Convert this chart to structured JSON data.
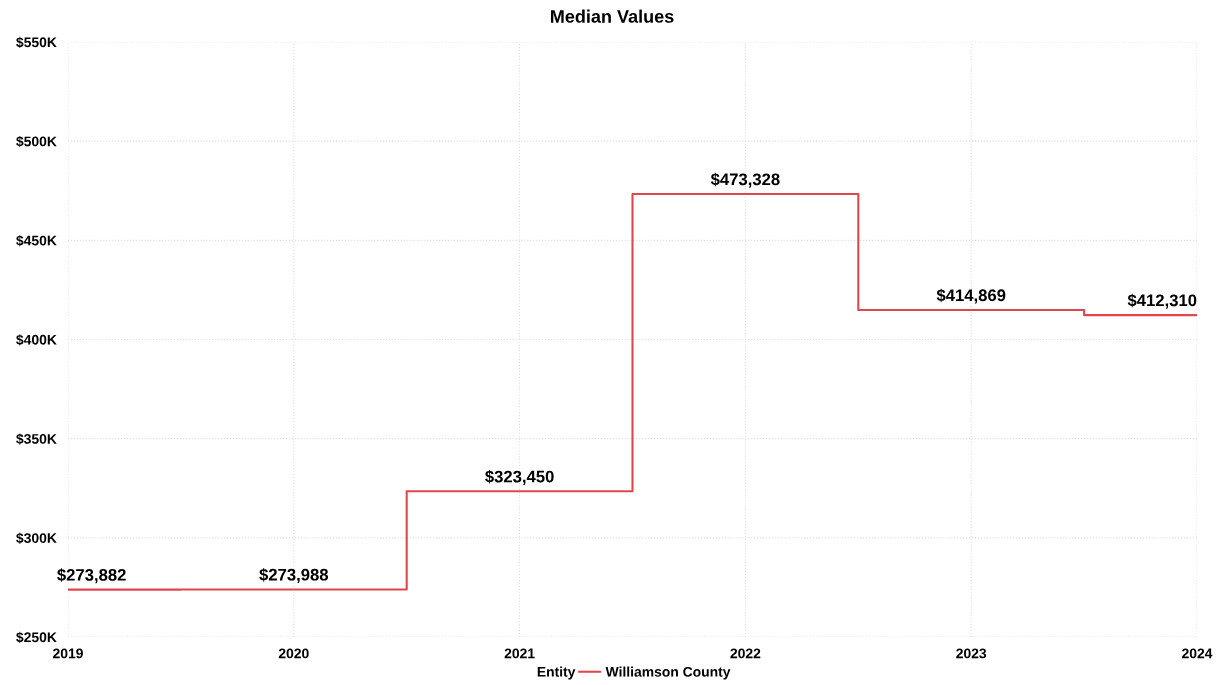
{
  "chart_data": {
    "type": "step",
    "title": "Median Values",
    "x": [
      2019,
      2020,
      2021,
      2022,
      2023,
      2024
    ],
    "series": [
      {
        "name": "Williamson County",
        "color": "#e0474c",
        "values": [
          273882,
          273988,
          323450,
          473328,
          414869,
          412310
        ],
        "value_labels": [
          "$273,882",
          "$273,988",
          "$323,450",
          "$473,328",
          "$414,869",
          "$412,310"
        ]
      }
    ],
    "xlim": [
      2019,
      2024
    ],
    "xticks": [
      2019,
      2020,
      2021,
      2022,
      2023,
      2024
    ],
    "ylim": [
      250000,
      550000
    ],
    "yticks": [
      {
        "value": 250000,
        "label": "$250K"
      },
      {
        "value": 300000,
        "label": "$300K"
      },
      {
        "value": 350000,
        "label": "$350K"
      },
      {
        "value": 400000,
        "label": "$400K"
      },
      {
        "value": 450000,
        "label": "$450K"
      },
      {
        "value": 500000,
        "label": "$500K"
      },
      {
        "value": 550000,
        "label": "$550K"
      }
    ],
    "grid": true,
    "legend": "bottom",
    "legend_title": "Entity",
    "line_style": "solid"
  }
}
